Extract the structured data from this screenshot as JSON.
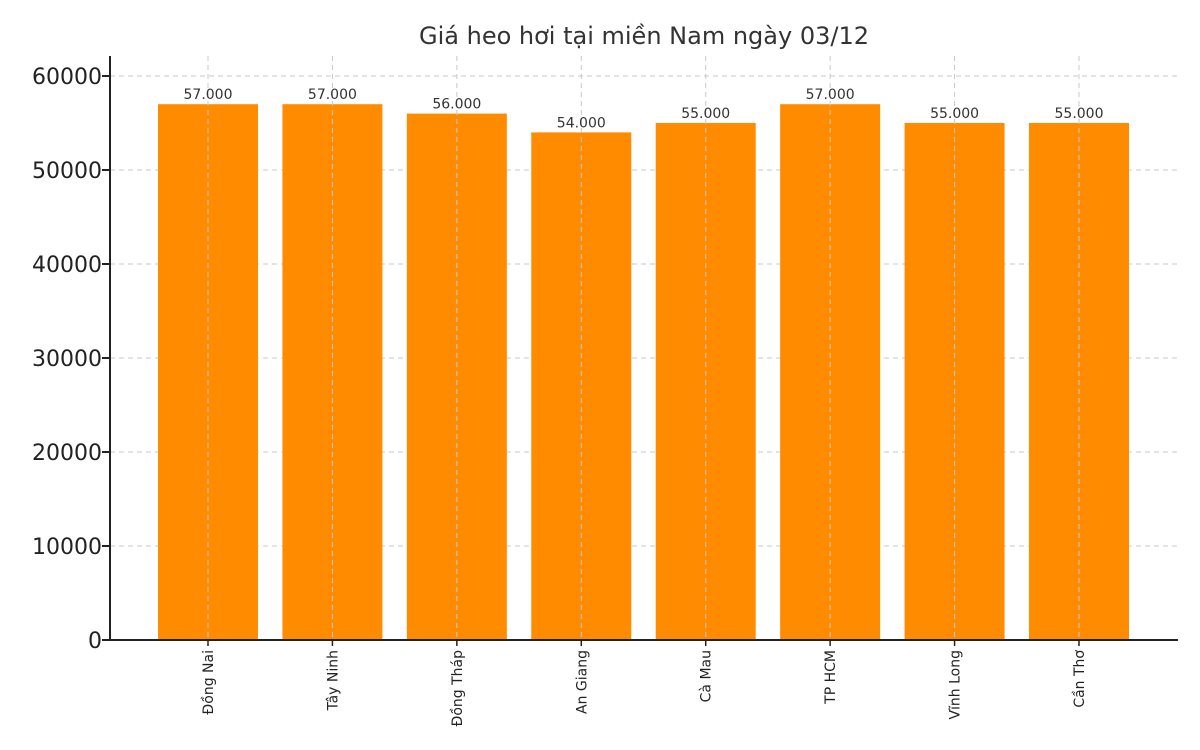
{
  "chart_data": {
    "type": "bar",
    "title": "Giá heo hơi tại miền Nam ngày 03/12",
    "xlabel": "",
    "ylabel": "",
    "categories": [
      "Đồng Nai",
      "Tây Ninh",
      "Đồng Tháp",
      "An Giang",
      "Cà Mau",
      "TP HCM",
      "Vĩnh Long",
      "Cần Thơ"
    ],
    "values": [
      57000,
      57000,
      56000,
      54000,
      55000,
      57000,
      55000,
      55000
    ],
    "value_labels": [
      "57.000",
      "57.000",
      "56.000",
      "54.000",
      "55.000",
      "57.000",
      "55.000",
      "55.000"
    ],
    "ylim": [
      0,
      60000
    ],
    "yticks": [
      0,
      10000,
      20000,
      30000,
      40000,
      50000,
      60000
    ],
    "ytick_labels": [
      "0",
      "10000",
      "20000",
      "30000",
      "40000",
      "50000",
      "60000"
    ],
    "grid": true,
    "grid_style": "dashed",
    "legend": null,
    "xtick_rotation": 90,
    "colors": {
      "bar": "#FF8C00",
      "grid": "#C8C8C8",
      "axis": "#222222",
      "title": "#333333"
    }
  }
}
